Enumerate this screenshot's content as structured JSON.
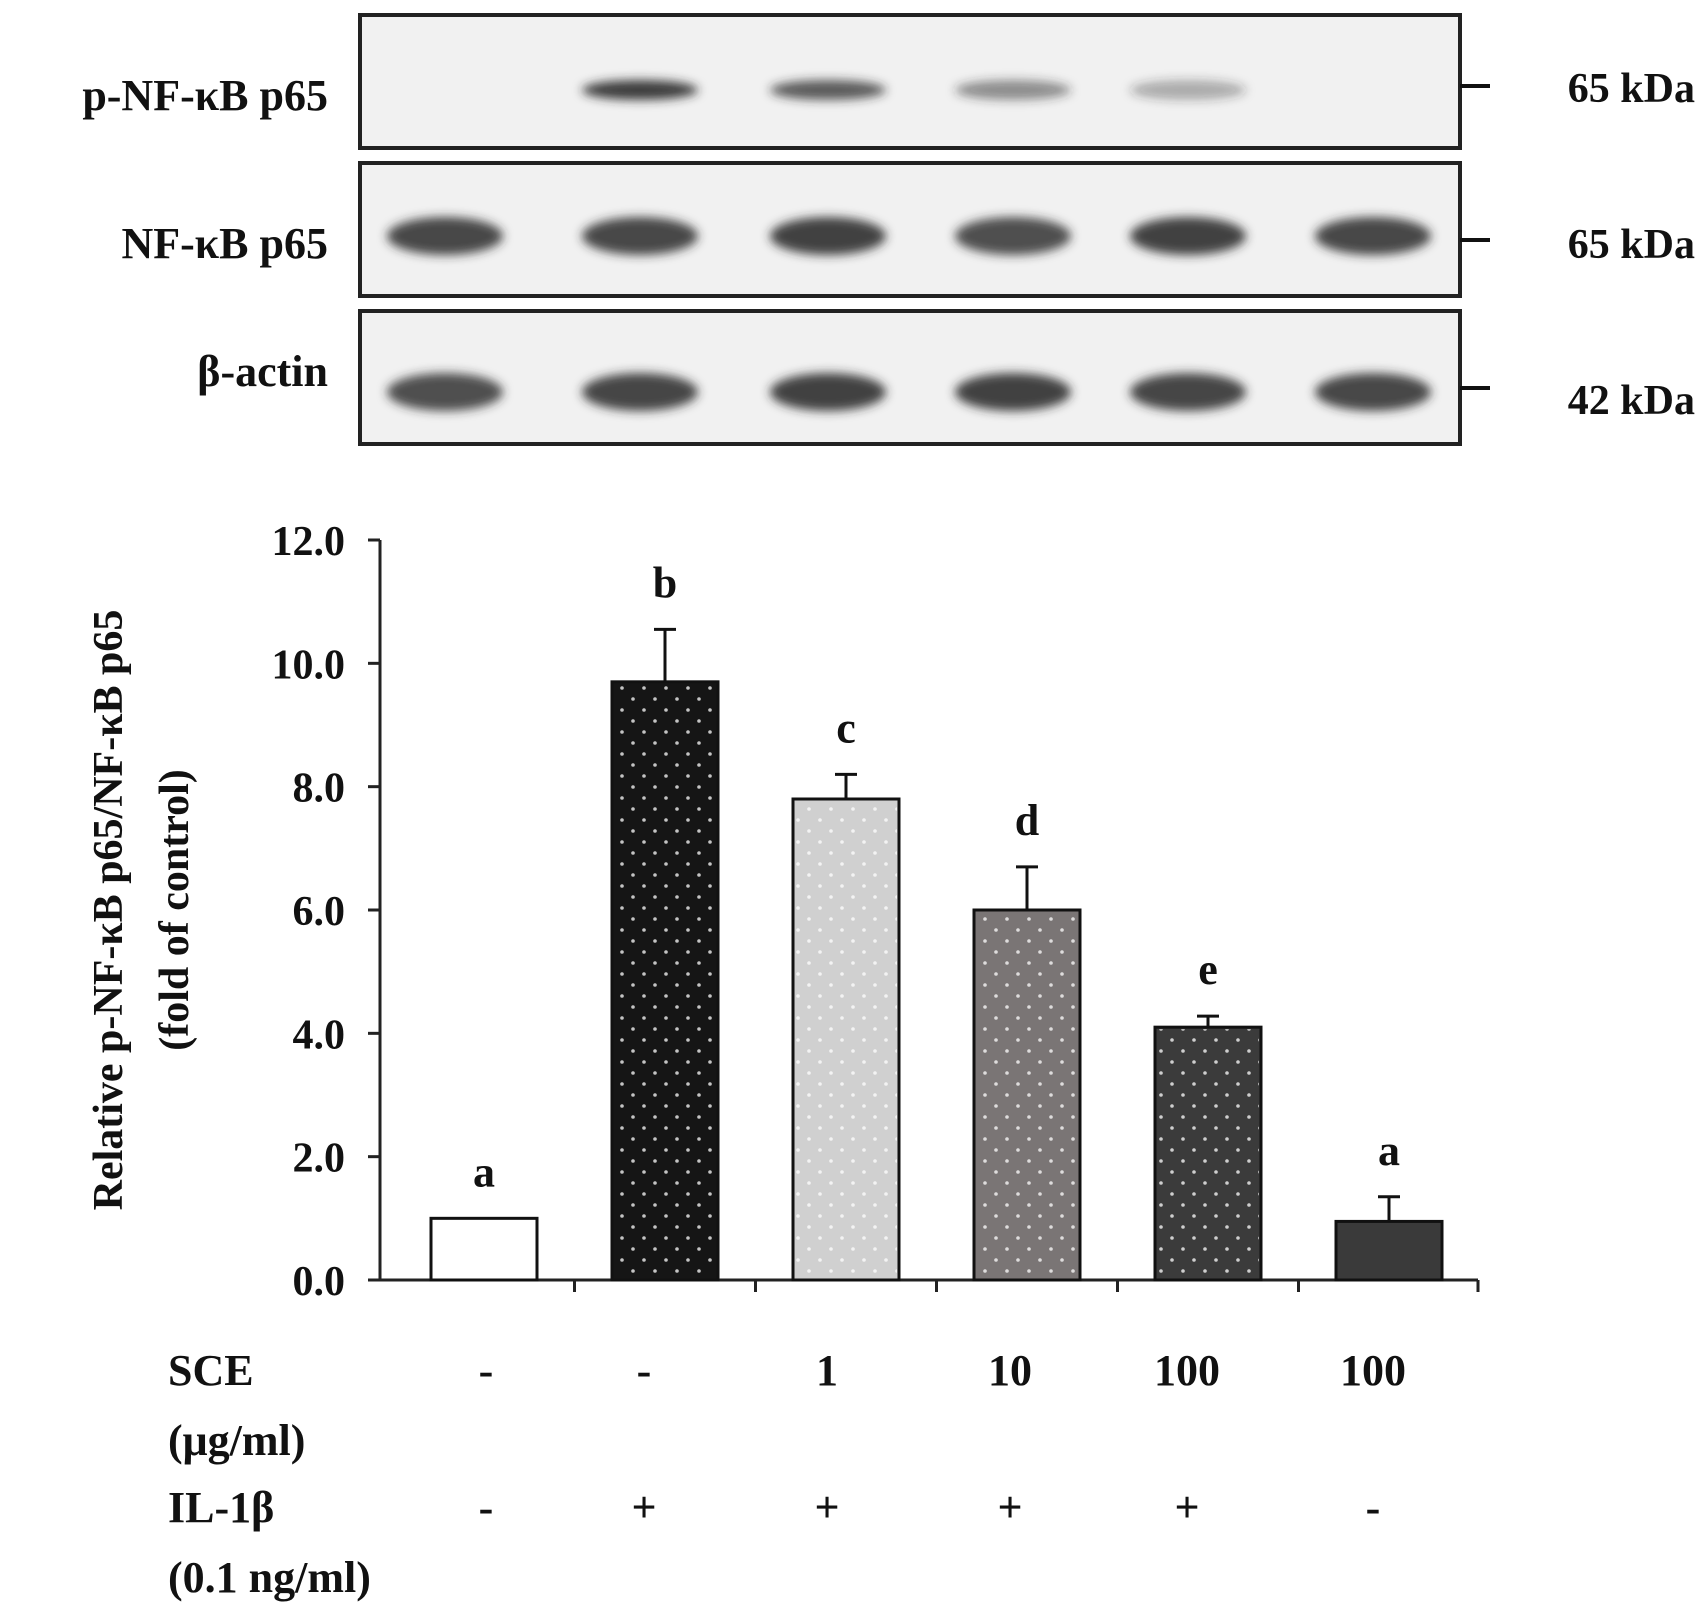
{
  "blot": {
    "rows": [
      {
        "label": "p-NF-κB p65",
        "marker": "65 kDa",
        "intensity": [
          0.0,
          0.9,
          0.75,
          0.5,
          0.35,
          0.0
        ]
      },
      {
        "label": "NF-κB p65",
        "marker": "65 kDa",
        "intensity": [
          0.85,
          0.85,
          0.88,
          0.82,
          0.88,
          0.85
        ]
      },
      {
        "label": "β-actin",
        "marker": "42 kDa",
        "intensity": [
          0.82,
          0.86,
          0.88,
          0.88,
          0.86,
          0.85
        ]
      }
    ]
  },
  "treatments": [
    {
      "label": "SCE",
      "unit": "(μg/ml)",
      "values": [
        "-",
        "-",
        "1",
        "10",
        "100",
        "100"
      ]
    },
    {
      "label": "IL-1β",
      "unit": "(0.1 ng/ml)",
      "values": [
        "-",
        "+",
        "+",
        "+",
        "+",
        "-"
      ]
    }
  ],
  "chart_data": {
    "type": "bar",
    "ylabel_line1": "Relative p-NF-κB p65/NF-κB p65",
    "ylabel_line2": "(fold of control)",
    "ylim": [
      0,
      12
    ],
    "yticks": [
      "0.0",
      "2.0",
      "4.0",
      "6.0",
      "8.0",
      "10.0",
      "12.0"
    ],
    "values": [
      1.0,
      9.7,
      7.8,
      6.0,
      4.1,
      0.95
    ],
    "errors": [
      0.0,
      0.85,
      0.4,
      0.7,
      0.18,
      0.4
    ],
    "letters": [
      "a",
      "b",
      "c",
      "d",
      "e",
      "a"
    ],
    "colors": [
      "#ffffff",
      "#151515",
      "#d0d0d0",
      "#7a7575",
      "#3b3b3b",
      "#3a3a3a"
    ],
    "dotted": [
      false,
      true,
      true,
      true,
      true,
      false
    ],
    "grid": false
  }
}
